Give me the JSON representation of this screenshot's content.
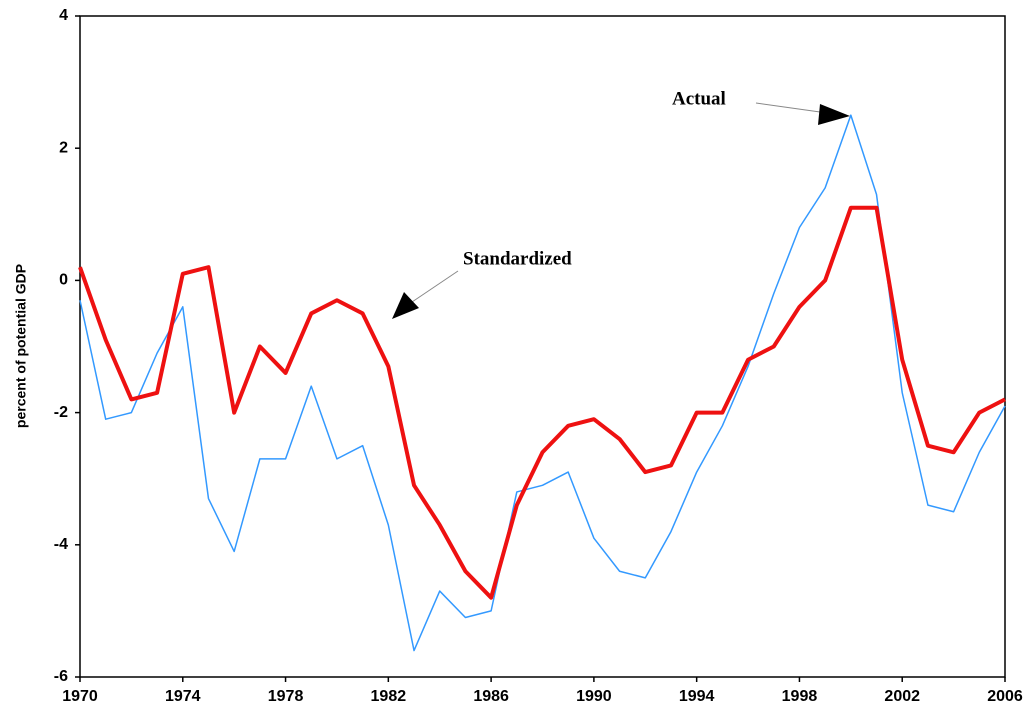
{
  "chart_data": {
    "type": "line",
    "y_label": "percent of potential GDP",
    "x": [
      1970,
      1971,
      1972,
      1973,
      1974,
      1975,
      1976,
      1977,
      1978,
      1979,
      1980,
      1981,
      1982,
      1983,
      1984,
      1985,
      1986,
      1987,
      1988,
      1989,
      1990,
      1991,
      1992,
      1993,
      1994,
      1995,
      1996,
      1997,
      1998,
      1999,
      2000,
      2001,
      2002,
      2003,
      2004,
      2005,
      2006
    ],
    "series": [
      {
        "name": "Actual",
        "color": "#3399ff",
        "width": 1.5,
        "values": [
          -0.3,
          -2.1,
          -2.0,
          -1.1,
          -0.4,
          -3.3,
          -4.1,
          -2.7,
          -2.7,
          -1.6,
          -2.7,
          -2.5,
          -3.7,
          -5.6,
          -4.7,
          -5.1,
          -5.0,
          -3.2,
          -3.1,
          -2.9,
          -3.9,
          -4.4,
          -4.5,
          -3.8,
          -2.9,
          -2.2,
          -1.3,
          -0.2,
          0.8,
          1.4,
          2.5,
          1.3,
          -1.7,
          -3.4,
          -3.5,
          -2.6,
          -1.9
        ]
      },
      {
        "name": "Standardized",
        "color": "#ee1111",
        "width": 4,
        "values": [
          0.2,
          -0.9,
          -1.8,
          -1.7,
          0.1,
          0.2,
          -2.0,
          -1.0,
          -1.4,
          -0.5,
          -0.3,
          -0.5,
          -1.3,
          -3.1,
          -3.7,
          -4.4,
          -4.8,
          -3.4,
          -2.6,
          -2.2,
          -2.1,
          -2.4,
          -2.9,
          -2.8,
          -2.0,
          -2.0,
          -1.2,
          -1.0,
          -0.4,
          0.0,
          1.1,
          1.1,
          -1.2,
          -2.5,
          -2.6,
          -2.0,
          -1.8
        ]
      }
    ],
    "xlim": [
      1970,
      2006
    ],
    "xticks": [
      1970,
      1974,
      1978,
      1982,
      1986,
      1990,
      1994,
      1998,
      2002,
      2006
    ],
    "ylim": [
      -6,
      4
    ],
    "yticks": [
      -6,
      -4,
      -2,
      0,
      2,
      4
    ]
  }
}
